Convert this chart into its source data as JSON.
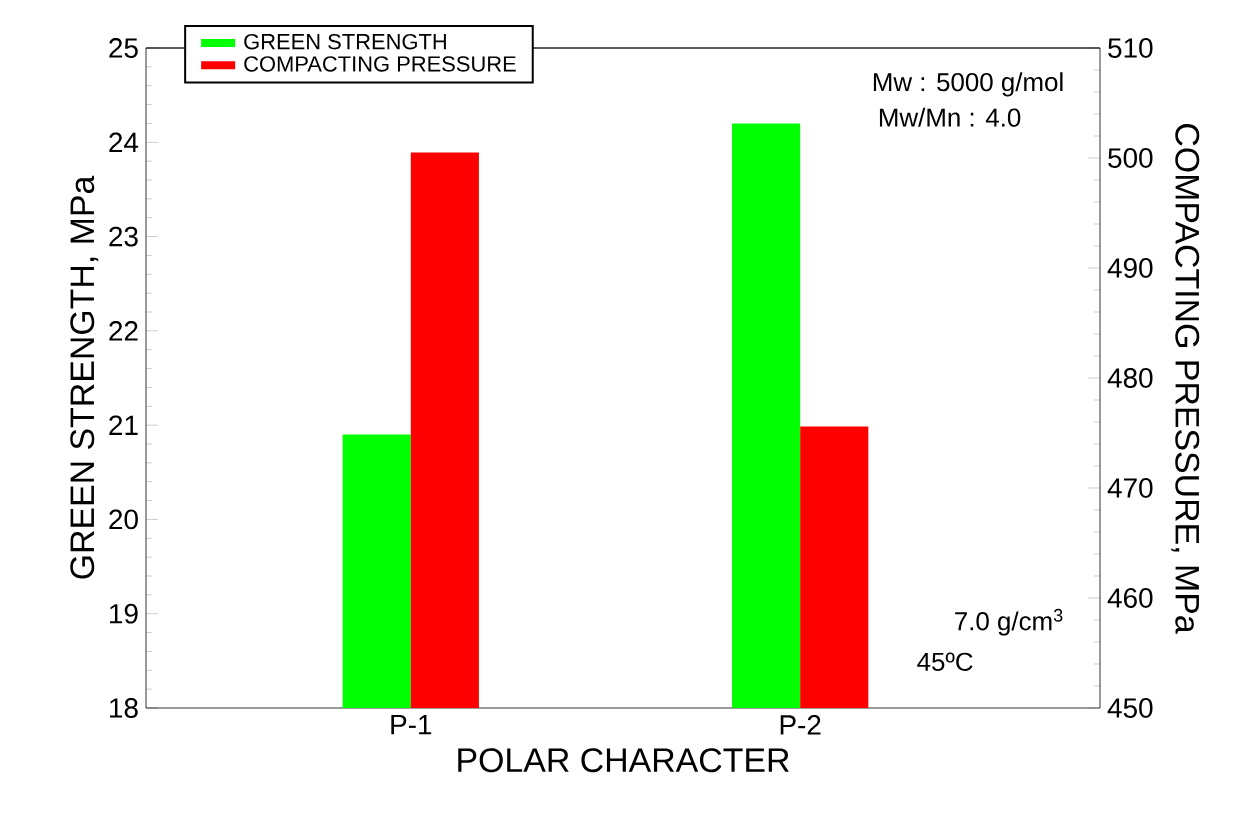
{
  "chart_data": {
    "type": "bar",
    "categories": [
      "P-1",
      "P-2"
    ],
    "xlabel": "POLAR CHARACTER",
    "ylabel": "GREEN STRENGTH, MPa",
    "y2label": "COMPACTING PRESSURE, MPa",
    "series": [
      {
        "name": "GREEN STRENGTH",
        "color": "#00ff00",
        "values": [
          20.9,
          24.2
        ]
      },
      {
        "name": "COMPACTING PRESSURE",
        "color": "#ff0000",
        "values": [
          500.5,
          475.6
        ],
        "axis": "y2"
      }
    ],
    "ylim": [
      18,
      25
    ],
    "yticks": [
      18,
      19,
      20,
      21,
      22,
      23,
      24,
      25
    ],
    "y2lim": [
      450,
      510
    ],
    "y2ticks": [
      450,
      460,
      470,
      480,
      490,
      500,
      510
    ],
    "legend": "top left",
    "grid": false,
    "annotations": [
      "Mw : 5000 g/mol",
      "Mw/Mn : 4.0",
      "7.0 g/cm$^{3}$",
      "45ºC"
    ]
  }
}
